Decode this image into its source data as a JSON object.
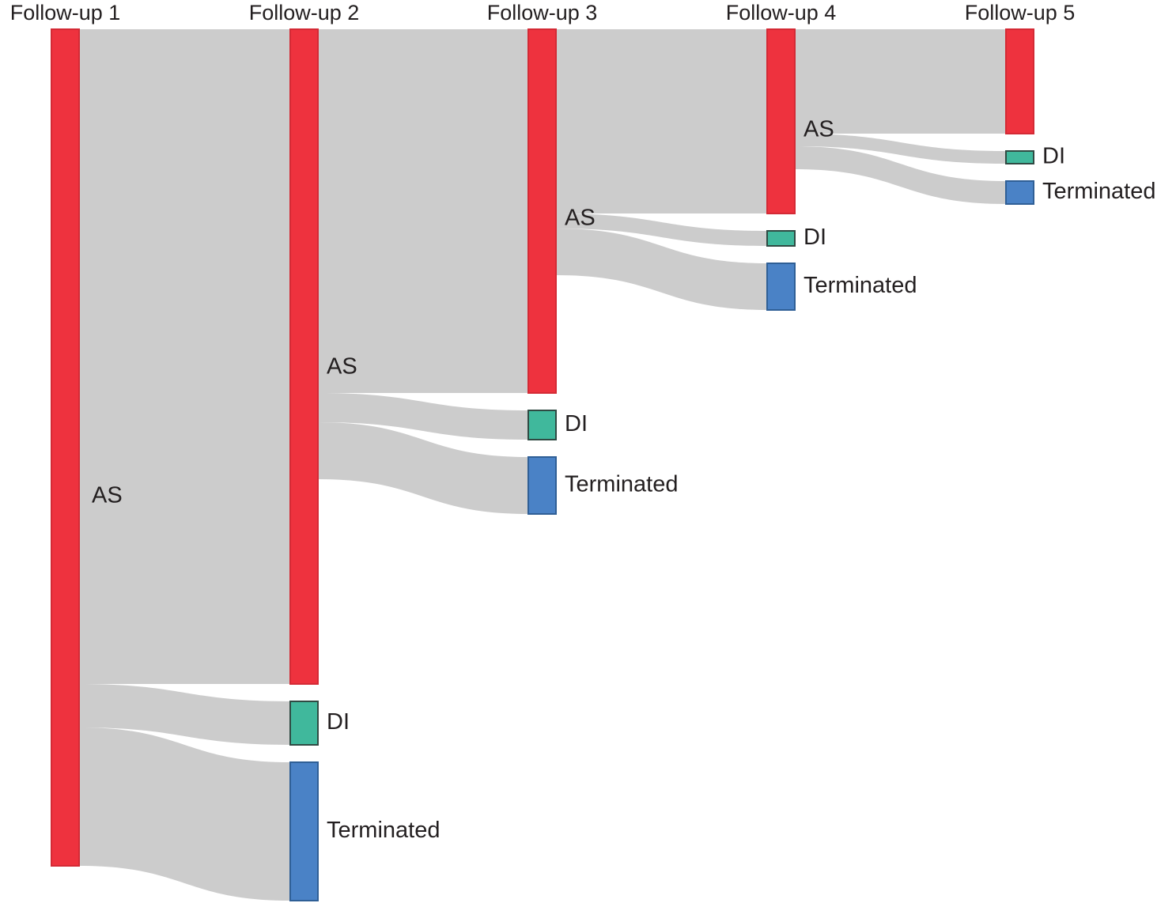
{
  "chart_data": {
    "type": "sankey",
    "title": "",
    "columns": [
      "Follow-up 1",
      "Follow-up 2",
      "Follow-up 3",
      "Follow-up 4",
      "Follow-up 5"
    ],
    "categories": {
      "AS": {
        "label": "AS",
        "color": "#ee323e"
      },
      "DI": {
        "label": "DI",
        "color": "#40b89c"
      },
      "Terminated": {
        "label": "Terminated",
        "color": "#4a82c6"
      }
    },
    "nodes": [
      {
        "id": "fu1_AS",
        "column": 0,
        "category": "AS",
        "value": 1058
      },
      {
        "id": "fu2_AS",
        "column": 1,
        "category": "AS",
        "value": 828
      },
      {
        "id": "fu2_DI",
        "column": 1,
        "category": "DI",
        "value": 55
      },
      {
        "id": "fu2_Terminated",
        "column": 1,
        "category": "Terminated",
        "value": 175
      },
      {
        "id": "fu3_AS",
        "column": 2,
        "category": "AS",
        "value": 460
      },
      {
        "id": "fu3_DI",
        "column": 2,
        "category": "DI",
        "value": 37
      },
      {
        "id": "fu3_Terminated",
        "column": 2,
        "category": "Terminated",
        "value": 72
      },
      {
        "id": "fu4_AS",
        "column": 3,
        "category": "AS",
        "value": 233
      },
      {
        "id": "fu4_DI",
        "column": 3,
        "category": "DI",
        "value": 19
      },
      {
        "id": "fu4_Terminated",
        "column": 3,
        "category": "Terminated",
        "value": 59
      },
      {
        "id": "fu5_AS",
        "column": 4,
        "category": "AS",
        "value": 132
      },
      {
        "id": "fu5_DI",
        "column": 4,
        "category": "DI",
        "value": 16
      },
      {
        "id": "fu5_Terminated",
        "column": 4,
        "category": "Terminated",
        "value": 29
      }
    ],
    "links": [
      {
        "source": "fu1_AS",
        "target": "fu2_AS",
        "value": 828
      },
      {
        "source": "fu1_AS",
        "target": "fu2_DI",
        "value": 55
      },
      {
        "source": "fu1_AS",
        "target": "fu2_Terminated",
        "value": 175
      },
      {
        "source": "fu2_AS",
        "target": "fu3_AS",
        "value": 460
      },
      {
        "source": "fu2_AS",
        "target": "fu3_DI",
        "value": 37
      },
      {
        "source": "fu2_AS",
        "target": "fu3_Terminated",
        "value": 72
      },
      {
        "source": "fu3_AS",
        "target": "fu4_AS",
        "value": 233
      },
      {
        "source": "fu3_AS",
        "target": "fu4_DI",
        "value": 19
      },
      {
        "source": "fu3_AS",
        "target": "fu4_Terminated",
        "value": 59
      },
      {
        "source": "fu4_AS",
        "target": "fu5_AS",
        "value": 132
      },
      {
        "source": "fu4_AS",
        "target": "fu5_DI",
        "value": 16
      },
      {
        "source": "fu4_AS",
        "target": "fu5_Terminated",
        "value": 29
      }
    ],
    "link_color": "#cccccc",
    "units": "relative flow size (unlabeled)"
  }
}
